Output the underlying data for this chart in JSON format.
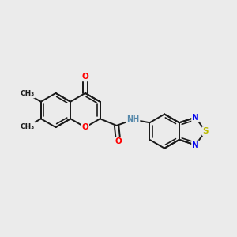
{
  "bg": "#ebebeb",
  "bond_color": "#1a1a1a",
  "O_color": "#ff0000",
  "N_color": "#0000ee",
  "S_color": "#bbbb00",
  "H_color": "#5588aa",
  "C_color": "#1a1a1a",
  "label_bg": "#ebebeb",
  "lw": 1.4,
  "lw_inner": 1.2,
  "bl": 0.072
}
